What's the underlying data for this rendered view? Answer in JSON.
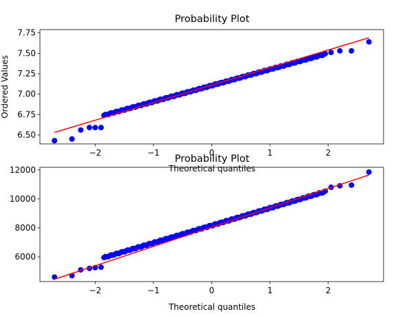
{
  "chart_data": [
    {
      "type": "scatter",
      "title": "Probability Plot",
      "xlabel": "Theoretical quantiles",
      "ylabel": "Ordered Values",
      "xlim": [
        -2.95,
        2.95
      ],
      "ylim": [
        6.39,
        7.79
      ],
      "xticks": [
        {
          "value": -2,
          "label": "−2"
        },
        {
          "value": -1,
          "label": "−1"
        },
        {
          "value": 0,
          "label": "0"
        },
        {
          "value": 1,
          "label": "1"
        },
        {
          "value": 2,
          "label": "2"
        }
      ],
      "yticks": [
        {
          "value": 6.5,
          "label": "6.50"
        },
        {
          "value": 6.75,
          "label": "6.75"
        },
        {
          "value": 7.0,
          "label": "7.00"
        },
        {
          "value": 7.25,
          "label": "7.25"
        },
        {
          "value": 7.5,
          "label": "7.50"
        },
        {
          "value": 7.75,
          "label": "7.75"
        }
      ],
      "grid": false,
      "fit_line": {
        "x": [
          -2.7,
          2.7
        ],
        "y": [
          6.53,
          7.69
        ],
        "color": "#ff0000"
      },
      "points_color": "#0000ff",
      "tail_points": {
        "x": [
          -2.7,
          -2.4,
          -2.25,
          -2.1,
          -2.0,
          -1.9,
          2.05,
          2.2,
          2.4,
          2.7
        ],
        "y": [
          6.43,
          6.45,
          6.56,
          6.59,
          6.59,
          6.59,
          7.51,
          7.53,
          7.53,
          7.64
        ]
      },
      "core_points": {
        "x_start": -1.85,
        "x_end": 1.95,
        "count": 150,
        "y_at_start": 6.74,
        "y_at_end": 7.49
      }
    },
    {
      "type": "scatter",
      "title": "Probability Plot",
      "xlabel": "Theoretical quantiles",
      "ylabel": "",
      "xlim": [
        -2.95,
        2.95
      ],
      "ylim": [
        4290,
        12180
      ],
      "xticks": [
        {
          "value": -2,
          "label": "−2"
        },
        {
          "value": -1,
          "label": "−1"
        },
        {
          "value": 0,
          "label": "0"
        },
        {
          "value": 1,
          "label": "1"
        },
        {
          "value": 2,
          "label": "2"
        }
      ],
      "yticks": [
        {
          "value": 6000,
          "label": "6000"
        },
        {
          "value": 8000,
          "label": "8000"
        },
        {
          "value": 10000,
          "label": "10000"
        },
        {
          "value": 12000,
          "label": "12000"
        }
      ],
      "grid": false,
      "fit_line": {
        "x": [
          -2.7,
          2.7
        ],
        "y": [
          4450,
          11650
        ],
        "color": "#ff0000"
      },
      "points_color": "#0000ff",
      "tail_points": {
        "x": [
          -2.7,
          -2.4,
          -2.25,
          -2.1,
          -2.0,
          -1.9,
          2.05,
          2.2,
          2.4,
          2.7
        ],
        "y": [
          4600,
          4700,
          5100,
          5200,
          5250,
          5280,
          10800,
          10900,
          10950,
          11850
        ]
      },
      "core_points": {
        "x_start": -1.85,
        "x_end": 1.95,
        "count": 150,
        "y_at_start": 5950,
        "y_at_end": 10500
      }
    }
  ]
}
